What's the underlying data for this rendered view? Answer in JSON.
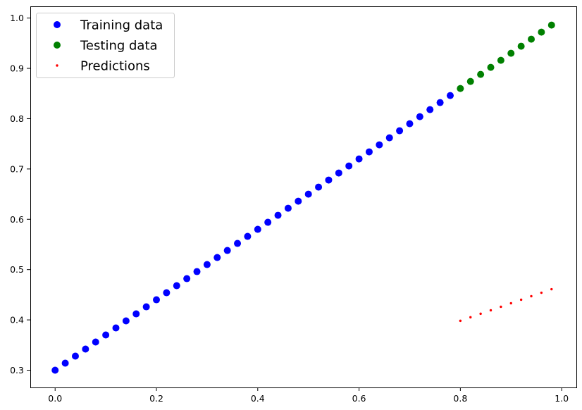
{
  "chart_data": {
    "type": "scatter",
    "title": "",
    "xlabel": "",
    "ylabel": "",
    "xlim": [
      -0.049,
      1.029
    ],
    "ylim": [
      0.2657,
      1.0233
    ],
    "x_ticks": [
      "0.0",
      "0.2",
      "0.4",
      "0.6",
      "0.8",
      "1.0"
    ],
    "y_ticks": [
      "0.3",
      "0.4",
      "0.5",
      "0.6",
      "0.7",
      "0.8",
      "0.9",
      "1.0"
    ],
    "grid": false,
    "legend_position": "top-left",
    "series": [
      {
        "name": "Training data",
        "color": "#0000ff",
        "marker": "large-circle",
        "x": [
          0.0,
          0.02,
          0.04,
          0.06,
          0.08,
          0.1,
          0.12,
          0.14,
          0.16,
          0.18,
          0.2,
          0.22,
          0.24,
          0.26,
          0.28,
          0.3,
          0.32,
          0.34,
          0.36,
          0.38,
          0.4,
          0.42,
          0.44,
          0.46,
          0.48,
          0.5,
          0.52,
          0.54,
          0.56,
          0.58,
          0.6,
          0.62,
          0.64,
          0.66,
          0.68,
          0.7,
          0.72,
          0.74,
          0.76,
          0.78
        ],
        "y": [
          0.3,
          0.314,
          0.328,
          0.342,
          0.356,
          0.37,
          0.384,
          0.398,
          0.412,
          0.426,
          0.44,
          0.454,
          0.468,
          0.482,
          0.496,
          0.51,
          0.524,
          0.538,
          0.552,
          0.566,
          0.58,
          0.594,
          0.608,
          0.622,
          0.636,
          0.65,
          0.664,
          0.678,
          0.692,
          0.706,
          0.72,
          0.734,
          0.748,
          0.762,
          0.776,
          0.79,
          0.804,
          0.818,
          0.832,
          0.846
        ]
      },
      {
        "name": "Testing data",
        "color": "#008000",
        "marker": "large-circle",
        "x": [
          0.8,
          0.82,
          0.84,
          0.86,
          0.88,
          0.9,
          0.92,
          0.94,
          0.96,
          0.98
        ],
        "y": [
          0.86,
          0.874,
          0.888,
          0.902,
          0.916,
          0.93,
          0.944,
          0.958,
          0.972,
          0.986
        ]
      },
      {
        "name": "Predictions",
        "color": "#ff0000",
        "marker": "small-dot",
        "x": [
          0.8,
          0.82,
          0.84,
          0.86,
          0.88,
          0.9,
          0.92,
          0.94,
          0.96,
          0.98
        ],
        "y": [
          0.3982,
          0.4052,
          0.4122,
          0.4191,
          0.4261,
          0.4331,
          0.4401,
          0.4471,
          0.454,
          0.461
        ]
      }
    ]
  }
}
